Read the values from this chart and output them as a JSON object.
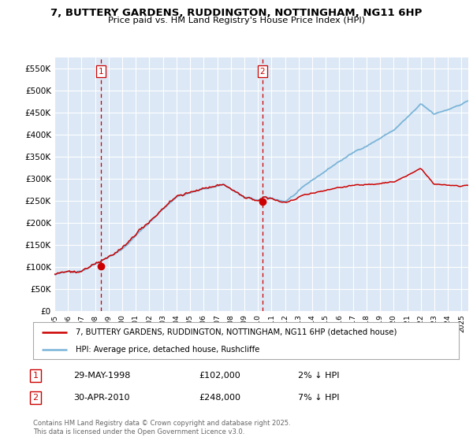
{
  "title": "7, BUTTERY GARDENS, RUDDINGTON, NOTTINGHAM, NG11 6HP",
  "subtitle": "Price paid vs. HM Land Registry's House Price Index (HPI)",
  "bg_color": "#ffffff",
  "plot_bg_color": "#dce8f5",
  "grid_color": "#ffffff",
  "ylim": [
    0,
    575000
  ],
  "yticks": [
    0,
    50000,
    100000,
    150000,
    200000,
    250000,
    300000,
    350000,
    400000,
    450000,
    500000,
    550000
  ],
  "ytick_labels": [
    "£0",
    "£50K",
    "£100K",
    "£150K",
    "£200K",
    "£250K",
    "£300K",
    "£350K",
    "£400K",
    "£450K",
    "£500K",
    "£550K"
  ],
  "legend_line1": "7, BUTTERY GARDENS, RUDDINGTON, NOTTINGHAM, NG11 6HP (detached house)",
  "legend_line2": "HPI: Average price, detached house, Rushcliffe",
  "sale1_date": "29-MAY-1998",
  "sale1_price": "£102,000",
  "sale1_note": "2% ↓ HPI",
  "sale2_date": "30-APR-2010",
  "sale2_price": "£248,000",
  "sale2_note": "7% ↓ HPI",
  "footer": "Contains HM Land Registry data © Crown copyright and database right 2025.\nThis data is licensed under the Open Government Licence v3.0.",
  "hpi_color": "#7ab4d8",
  "price_color": "#cc0000",
  "sale1_year": 1998.41,
  "sale2_year": 2010.33,
  "sale1_price_val": 102000,
  "sale2_price_val": 248000
}
